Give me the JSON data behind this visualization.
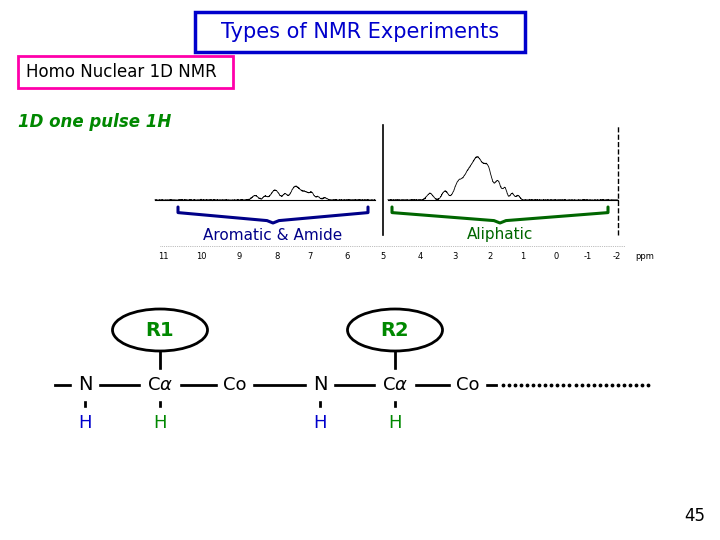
{
  "title": "Types of NMR Experiments",
  "subtitle": "Homo Nuclear 1D NMR",
  "label_1d": "1D one pulse 1H",
  "aromatic_label": "Aromatic & Amide",
  "aliphatic_label": "Aliphatic",
  "title_color": "#0000CC",
  "subtitle_border_color": "#FF00AA",
  "label_1d_color": "#008800",
  "aromatic_brace_color": "#000088",
  "aliphatic_brace_color": "#006600",
  "aromatic_label_color": "#000088",
  "aliphatic_label_color": "#006600",
  "r1_label": "R1",
  "r2_label": "R2",
  "r_label_color": "#008800",
  "ellipse_color": "#000000",
  "chain_color": "#000000",
  "h_left_color": "#0000CC",
  "h_right_color": "#008800",
  "slide_number": "45",
  "background_color": "#FFFFFF"
}
